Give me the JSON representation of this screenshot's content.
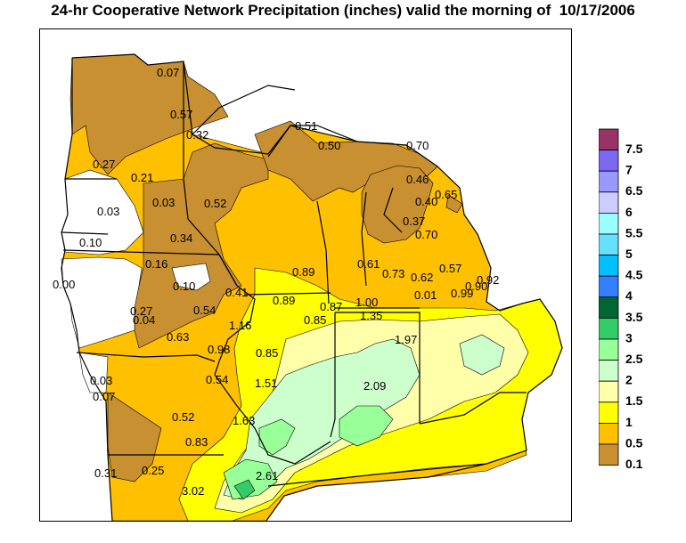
{
  "title": "24-hr Cooperative Network Precipitation (inches) valid the morning of  10/17/2006",
  "legend": {
    "labels": [
      "7.5",
      "7",
      "6.5",
      "6",
      "5.5",
      "5",
      "4.5",
      "4",
      "3.5",
      "3",
      "2.5",
      "2",
      "1.5",
      "1",
      "0.5",
      "0.1"
    ],
    "colors": [
      "#993366",
      "#7b68ee",
      "#9999ff",
      "#ccccff",
      "#99ffff",
      "#66e0ff",
      "#00bfff",
      "#3380ff",
      "#006633",
      "#33cc66",
      "#99ff99",
      "#ccffcc",
      "#ffffaa",
      "#ffff00",
      "#ffc000",
      "#c89030"
    ]
  },
  "colors": {
    "c01": "#c89030",
    "c05": "#ffc000",
    "c10": "#ffff00",
    "c15": "#ffffaa",
    "c20": "#ccffcc",
    "c25": "#99ff99",
    "c30": "#33cc66",
    "border": "#000000"
  },
  "observations": [
    {
      "label": "0.07"
    },
    {
      "label": "0.57"
    },
    {
      "label": "0.32"
    },
    {
      "label": "0.27"
    },
    {
      "label": "0.21"
    },
    {
      "label": "0.03"
    },
    {
      "label": "0.03"
    },
    {
      "label": "0.52"
    },
    {
      "label": "0.34"
    },
    {
      "label": "0.10"
    },
    {
      "label": "0.16"
    },
    {
      "label": "0.00"
    },
    {
      "label": "0.10"
    },
    {
      "label": "0.41"
    },
    {
      "label": "0.54"
    },
    {
      "label": "0.27"
    },
    {
      "label": "0.04"
    },
    {
      "label": "0.63"
    },
    {
      "label": "1.16"
    },
    {
      "label": "0.98"
    },
    {
      "label": "0.85"
    },
    {
      "label": "0.54"
    },
    {
      "label": "1.51"
    },
    {
      "label": "0.03"
    },
    {
      "label": "0.07"
    },
    {
      "label": "0.52"
    },
    {
      "label": "1.63"
    },
    {
      "label": "0.83"
    },
    {
      "label": "0.31"
    },
    {
      "label": "0.25"
    },
    {
      "label": "3.02"
    },
    {
      "label": "2.61"
    },
    {
      "label": "0.51"
    },
    {
      "label": "0.50"
    },
    {
      "label": "0.70"
    },
    {
      "label": "0.46"
    },
    {
      "label": "0.40"
    },
    {
      "label": "0.65"
    },
    {
      "label": "0.37"
    },
    {
      "label": "0.70"
    },
    {
      "label": "0.89"
    },
    {
      "label": "0.89"
    },
    {
      "label": "0.85"
    },
    {
      "label": "0.87"
    },
    {
      "label": "1.00"
    },
    {
      "label": "1.35"
    },
    {
      "label": "0.61"
    },
    {
      "label": "0.73"
    },
    {
      "label": "0.62"
    },
    {
      "label": "0.57"
    },
    {
      "label": "0.01"
    },
    {
      "label": "0.99"
    },
    {
      "label": "0.90"
    },
    {
      "label": "0.92"
    },
    {
      "label": "1.97"
    },
    {
      "label": "2.09"
    }
  ]
}
